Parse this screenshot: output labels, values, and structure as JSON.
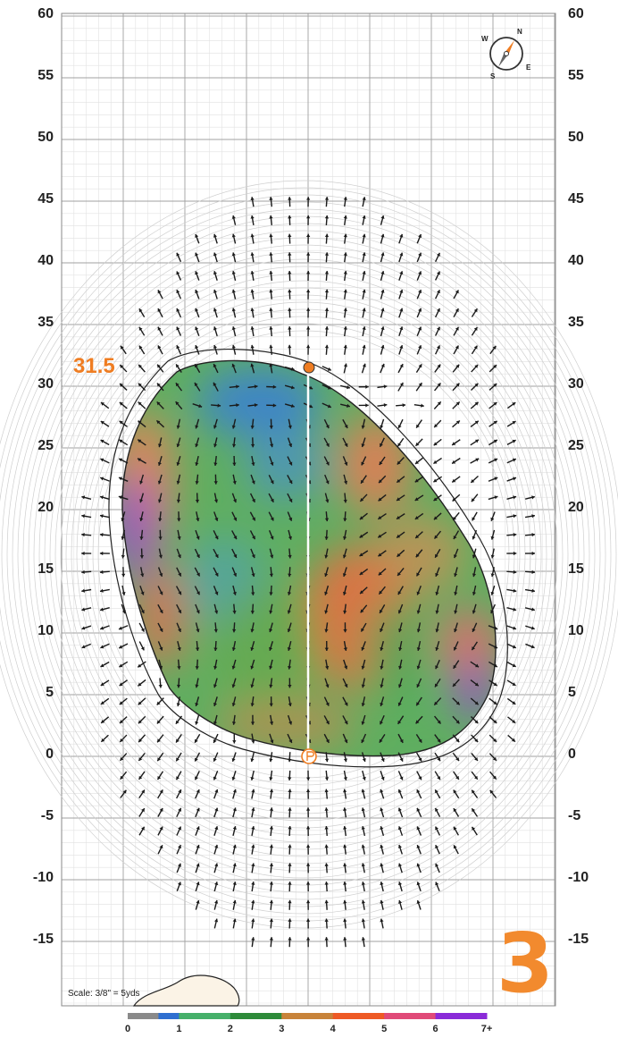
{
  "hole": {
    "number": "3"
  },
  "distance_label": "31.5",
  "scale_text": "Scale: 3/8\" = 5yds",
  "y_axis": {
    "ticks": [
      "60",
      "55",
      "50",
      "45",
      "40",
      "35",
      "30",
      "25",
      "20",
      "15",
      "10",
      "5",
      "0",
      "-5",
      "-10",
      "-15"
    ],
    "values": [
      60,
      55,
      50,
      45,
      40,
      35,
      30,
      25,
      20,
      15,
      10,
      5,
      0,
      -5,
      -10,
      -15
    ]
  },
  "legend": {
    "labels": [
      "0",
      "1",
      "2",
      "3",
      "4",
      "5",
      "6",
      "7+"
    ],
    "colors": [
      "#8a8a8a",
      "#2f6fd0",
      "#46b06a",
      "#2e8b3a",
      "#c8833a",
      "#ee5a25",
      "#e04a78",
      "#8a2bd8"
    ]
  },
  "colors": {
    "accent": "#f28a2e",
    "pin": "#ef7d22",
    "grid_major": "#9a9a9a",
    "grid_minor": "#dddddd",
    "outline": "#222222"
  },
  "icons": {
    "compass": "compass-icon",
    "pin": "pin-icon",
    "tee": "tee-marker-icon"
  },
  "compass": {
    "n": "N",
    "s": "S",
    "e": "E",
    "w": "W"
  }
}
